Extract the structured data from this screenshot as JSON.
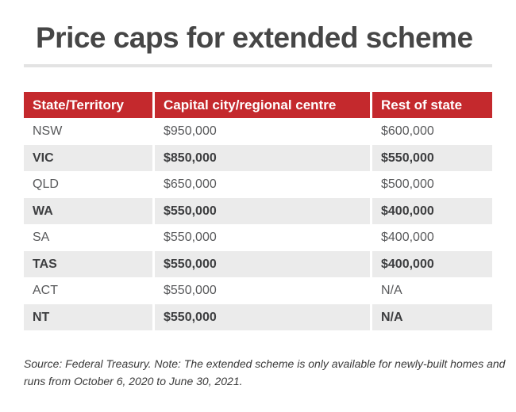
{
  "page": {
    "title": "Price caps for extended scheme"
  },
  "table": {
    "columns": [
      "State/Territory",
      "Capital city/regional centre",
      "Rest of state"
    ],
    "rows": [
      {
        "state": "NSW",
        "capital": "$950,000",
        "rest": "$600,000"
      },
      {
        "state": "VIC",
        "capital": "$850,000",
        "rest": "$550,000"
      },
      {
        "state": "QLD",
        "capital": "$650,000",
        "rest": "$500,000"
      },
      {
        "state": "WA",
        "capital": "$550,000",
        "rest": "$400,000"
      },
      {
        "state": "SA",
        "capital": "$550,000",
        "rest": "$400,000"
      },
      {
        "state": "TAS",
        "capital": "$550,000",
        "rest": "$400,000"
      },
      {
        "state": "ACT",
        "capital": "$550,000",
        "rest": "N/A"
      },
      {
        "state": "NT",
        "capital": "$550,000",
        "rest": "N/A"
      }
    ]
  },
  "footer": {
    "line1": "Source: Federal Treasury. Note: The extended scheme is only available for newly-built homes and",
    "line2": "runs from October 6, 2020 to June 30, 2021."
  },
  "colors": {
    "accent_red": "#c4292d",
    "row_shade": "#ebebeb",
    "title_text": "#464646",
    "body_text": "#58595b",
    "emphasis_text": "#3d3e40",
    "rule_gray": "#e3e3e3"
  },
  "chart_data": {
    "type": "table",
    "title": "Price caps for extended scheme",
    "columns": [
      "State/Territory",
      "Capital city/regional centre",
      "Rest of state"
    ],
    "rows": [
      [
        "NSW",
        "$950,000",
        "$600,000"
      ],
      [
        "VIC",
        "$850,000",
        "$550,000"
      ],
      [
        "QLD",
        "$650,000",
        "$500,000"
      ],
      [
        "WA",
        "$550,000",
        "$400,000"
      ],
      [
        "SA",
        "$550,000",
        "$400,000"
      ],
      [
        "TAS",
        "$550,000",
        "$400,000"
      ],
      [
        "ACT",
        "$550,000",
        "N/A"
      ],
      [
        "NT",
        "$550,000",
        "N/A"
      ]
    ],
    "note": "Source: Federal Treasury. Note: The extended scheme is only available for newly-built homes and runs from October 6, 2020 to June 30, 2021.",
    "layout": {
      "header_background": "#c4292d",
      "zebra_striping": true,
      "shaded_rows_bold": true
    }
  }
}
